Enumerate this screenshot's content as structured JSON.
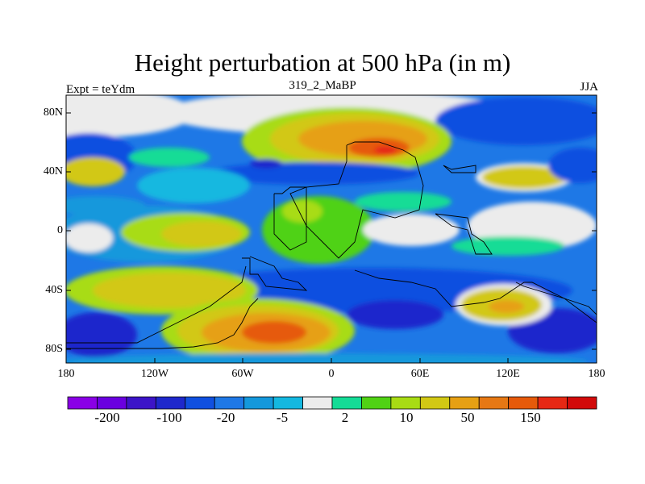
{
  "title": "Height perturbation at 500 hPa (in m)",
  "subtitle_left": "Expt = teYdm",
  "subtitle_center": "319_2_MaBP",
  "subtitle_right": "JJA",
  "lat_ticks": [
    "80N",
    "40N",
    "0",
    "40S",
    "80S"
  ],
  "lon_ticks": [
    "180",
    "120W",
    "60W",
    "0",
    "60E",
    "120E",
    "180"
  ],
  "colorbar": {
    "colors": [
      "#8a00e6",
      "#6a00e0",
      "#3c14c8",
      "#1e28cc",
      "#1050e0",
      "#1e78e6",
      "#1498dc",
      "#14b8e0",
      "#ececec",
      "#14dc96",
      "#50d214",
      "#a8dc14",
      "#d2c814",
      "#e6a014",
      "#e67814",
      "#e65a0a",
      "#e62814",
      "#d20a0a"
    ],
    "labels": [
      "-200",
      "-100",
      "-20",
      "-5",
      "2",
      "10",
      "50",
      "150"
    ]
  }
}
